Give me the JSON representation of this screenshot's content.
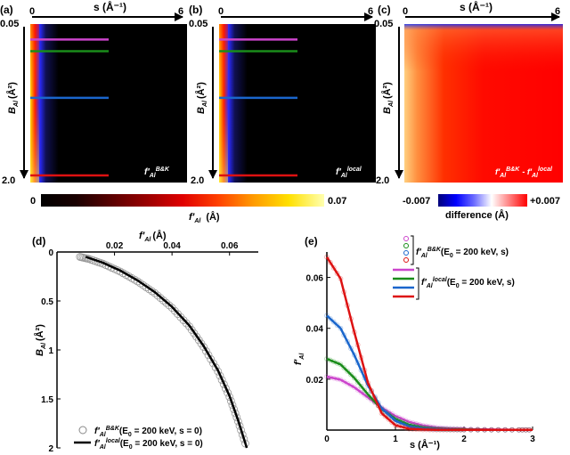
{
  "colors": {
    "map_scale": [
      "#000000",
      "#1a0000",
      "#5a0000",
      "#9a0000",
      "#e00000",
      "#ff4000",
      "#ff9a00",
      "#ffe000",
      "#ffffb0"
    ],
    "diff_scale": [
      "#00007a",
      "#0000ff",
      "#6a6aff",
      "#ffffff",
      "#ff8080",
      "#ff0000"
    ],
    "series": [
      "#e0e0e0",
      "#cc44cc",
      "#1a8c1a",
      "#1a66cc",
      "#dd1111"
    ]
  },
  "top_panels": [
    {
      "label": "(a)",
      "ylabel": "B",
      "ylabel_sub": "Al",
      "ylabel_unit": "(Å²)",
      "annotation": "f′",
      "annotation_sub": "Al",
      "annotation_sup": "B&K",
      "line_colors": [
        "#cc44cc",
        "#1a8c1a",
        "#1a66cc",
        "#dd1111"
      ]
    },
    {
      "label": "(b)",
      "ylabel": "B",
      "ylabel_sub": "Al",
      "ylabel_unit": "(Å²)",
      "annotation": "f′",
      "annotation_sub": "Al",
      "annotation_sup": "local",
      "line_colors": [
        "#cc44cc",
        "#1a8c1a",
        "#1a66cc",
        "#dd1111"
      ]
    },
    {
      "label": "(c)",
      "ylabel": "B",
      "ylabel_sub": "Al",
      "ylabel_unit": "(Å²)",
      "annotation": "f′",
      "annotation_sub": "Al",
      "annotation_sup": "B&K",
      "annotation2": "- f′",
      "annotation2_sub": "Al",
      "annotation2_sup": "local",
      "line_colors": []
    }
  ],
  "top_axes": {
    "s_label": "s (Å⁻¹)",
    "s_ticks": [
      "0",
      "6"
    ],
    "b_ticks": [
      "0.05",
      "2.0"
    ],
    "b_line_values": [
      0.25,
      0.4,
      1.0,
      2.0
    ]
  },
  "colorbar_a": {
    "min_label": "0",
    "max_label": "0.07",
    "title": "f′",
    "title_sub": "Al",
    "title_unit": "(Å)"
  },
  "colorbar_c": {
    "min_label": "-0.007",
    "max_label": "+0.007",
    "title": "difference (Å)"
  },
  "chart_data": [
    {
      "panel": "(d)",
      "type": "line",
      "xlabel": "f′",
      "xlabel_sub": "Al",
      "xlabel_unit": "(Å)",
      "ylabel": "B",
      "ylabel_sub": "Al",
      "ylabel_unit": "(Å²)",
      "x_tick_labels": [
        "0.02",
        "0.04",
        "0.06"
      ],
      "y_tick_labels": [
        "0",
        "0.5",
        "1",
        "1.5",
        "2"
      ],
      "xlim": [
        0,
        0.07
      ],
      "ylim": [
        0,
        2
      ],
      "y_inverted": true,
      "legend_position": "bottom-left",
      "series": [
        {
          "legend": "f′",
          "legend_sub": "Al",
          "legend_sup": "B&K",
          "legend_tail": "(E",
          "legend_tail_sub": "0",
          "legend_tail2": " = 200 keV, s = 0)",
          "marker": "circle",
          "x": [
            0.008,
            0.011,
            0.016,
            0.022,
            0.028,
            0.034,
            0.04,
            0.046,
            0.051,
            0.056,
            0.06,
            0.063,
            0.066
          ],
          "y": [
            0.05,
            0.07,
            0.12,
            0.2,
            0.3,
            0.42,
            0.57,
            0.76,
            0.97,
            1.22,
            1.48,
            1.73,
            2.0
          ]
        },
        {
          "legend": "f′",
          "legend_sub": "Al",
          "legend_sup": "local",
          "legend_tail": "(E",
          "legend_tail_sub": "0",
          "legend_tail2": " = 200 keV, s = 0)",
          "marker": "line",
          "x": [
            0.01,
            0.016,
            0.022,
            0.028,
            0.034,
            0.04,
            0.046,
            0.051,
            0.056,
            0.06,
            0.063,
            0.066
          ],
          "y": [
            0.05,
            0.11,
            0.19,
            0.29,
            0.41,
            0.56,
            0.75,
            0.96,
            1.21,
            1.47,
            1.72,
            2.0
          ]
        }
      ]
    },
    {
      "panel": "(e)",
      "type": "line",
      "xlabel": "s (Å⁻¹)",
      "ylabel": "f′",
      "ylabel_sub": "Al",
      "x_tick_labels": [
        "0",
        "1",
        "2",
        "3"
      ],
      "y_tick_labels": [
        "0.02",
        "0.04",
        "0.06"
      ],
      "xlim": [
        0,
        3
      ],
      "ylim": [
        0,
        0.07
      ],
      "legend_position": "top-right",
      "legend_groups": [
        {
          "text": "f′",
          "sub": "Al",
          "sup": "B&K",
          "tail": "(E",
          "tail_sub": "0",
          "tail2": " = 200 keV, s)"
        },
        {
          "text": "f′",
          "sub": "Al",
          "sup": "local",
          "tail": "(E",
          "tail_sub": "0",
          "tail2": " = 200 keV, s)"
        }
      ],
      "x": [
        0,
        0.2,
        0.4,
        0.6,
        0.8,
        1.0,
        1.2,
        1.4,
        1.6,
        1.8,
        2.0,
        2.4,
        2.8,
        3.0
      ],
      "series": [
        {
          "color": "#cc44cc",
          "values": [
            0.021,
            0.0198,
            0.0168,
            0.0128,
            0.0088,
            0.0055,
            0.0032,
            0.0018,
            0.001,
            0.0006,
            0.0004,
            0.0002,
            0.0001,
            0.0001
          ]
        },
        {
          "color": "#1a8c1a",
          "values": [
            0.028,
            0.0258,
            0.0205,
            0.014,
            0.0082,
            0.0044,
            0.0021,
            0.001,
            0.0005,
            0.0003,
            0.0002,
            0.0001,
            0.0001,
            0.0001
          ]
        },
        {
          "color": "#1a66cc",
          "values": [
            0.045,
            0.04,
            0.0295,
            0.0175,
            0.0085,
            0.0036,
            0.0014,
            0.0006,
            0.0003,
            0.0002,
            0.0001,
            0.0001,
            0.0001,
            0.0001
          ]
        },
        {
          "color": "#dd1111",
          "values": [
            0.068,
            0.0595,
            0.0385,
            0.0185,
            0.0066,
            0.0019,
            0.0005,
            0.0002,
            0.0001,
            0.0001,
            0.0001,
            0.0001,
            0.0001,
            0.0001
          ]
        }
      ]
    }
  ]
}
